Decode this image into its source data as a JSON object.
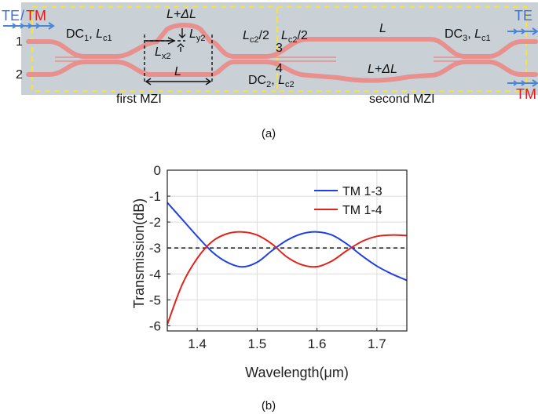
{
  "panel_a": {
    "background": "#c9d1d7",
    "waveguide_color": "#e7908d",
    "frame_color": "#f5e43b",
    "arrow_color": "#4a86d6",
    "te_color": "#3a6fd8",
    "tm_color": "#e31a1c",
    "te_left": "TE",
    "slash": "/",
    "tm_left": "TM",
    "te_right": "TE",
    "tm_right": "TM",
    "port1": "1",
    "port2": "2",
    "port3": "3",
    "port4": "4",
    "dc1": {
      "name": "DC",
      "sub": "1",
      "sep": ", ",
      "len": "L",
      "len_sub": "c1"
    },
    "dc2": {
      "name": "DC",
      "sub": "2",
      "sep": ", ",
      "len": "L",
      "len_sub": "c2"
    },
    "dc3": {
      "name": "DC",
      "sub": "3",
      "sep": ", ",
      "len": "L",
      "len_sub": "c1"
    },
    "lc2_half_left": {
      "len": "L",
      "len_sub": "c2",
      "tail": "/2"
    },
    "lc2_half_right": {
      "len": "L",
      "len_sub": "c2",
      "tail": "/2"
    },
    "l_plus_dl_top": "L+ΔL",
    "ly2": {
      "len": "L",
      "len_sub": "y2"
    },
    "lx2": {
      "len": "L",
      "len_sub": "x2"
    },
    "l_bottom": "L",
    "l_second": "L",
    "l_plus_dl_second": "L+ΔL",
    "first_mzi": "first MZI",
    "second_mzi": "second MZI",
    "caption": "(a)"
  },
  "chart_data": {
    "type": "line",
    "xlabel": "Wavelength(μm)",
    "ylabel": "Transmission(dB)",
    "xlim": [
      1.35,
      1.75
    ],
    "ylim": [
      -6.2,
      0
    ],
    "xticks": [
      1.4,
      1.5,
      1.6,
      1.7
    ],
    "yticks": [
      0,
      -1,
      -2,
      -3,
      -4,
      -5,
      -6
    ],
    "grid": true,
    "legend_position": "top-right",
    "series": [
      {
        "name": "TM 1-3",
        "color": "#1f3fe6",
        "x": [
          1.35,
          1.375,
          1.4,
          1.425,
          1.45,
          1.475,
          1.5,
          1.525,
          1.55,
          1.575,
          1.6,
          1.625,
          1.65,
          1.675,
          1.7,
          1.725,
          1.75
        ],
        "y": [
          -1.25,
          -1.9,
          -2.55,
          -3.15,
          -3.55,
          -3.73,
          -3.55,
          -3.1,
          -2.7,
          -2.45,
          -2.38,
          -2.5,
          -2.85,
          -3.3,
          -3.7,
          -4.0,
          -4.25
        ]
      },
      {
        "name": "TM 1-4",
        "color": "#e0241c",
        "x": [
          1.35,
          1.375,
          1.4,
          1.425,
          1.45,
          1.475,
          1.5,
          1.525,
          1.55,
          1.575,
          1.6,
          1.625,
          1.65,
          1.675,
          1.7,
          1.725,
          1.75
        ],
        "y": [
          -5.95,
          -4.4,
          -3.4,
          -2.75,
          -2.45,
          -2.38,
          -2.5,
          -2.85,
          -3.35,
          -3.65,
          -3.72,
          -3.5,
          -3.1,
          -2.75,
          -2.55,
          -2.5,
          -2.52
        ]
      }
    ],
    "reference_line": {
      "y": -3,
      "style": "dashed",
      "color": "#222222"
    },
    "caption": "(b)"
  }
}
